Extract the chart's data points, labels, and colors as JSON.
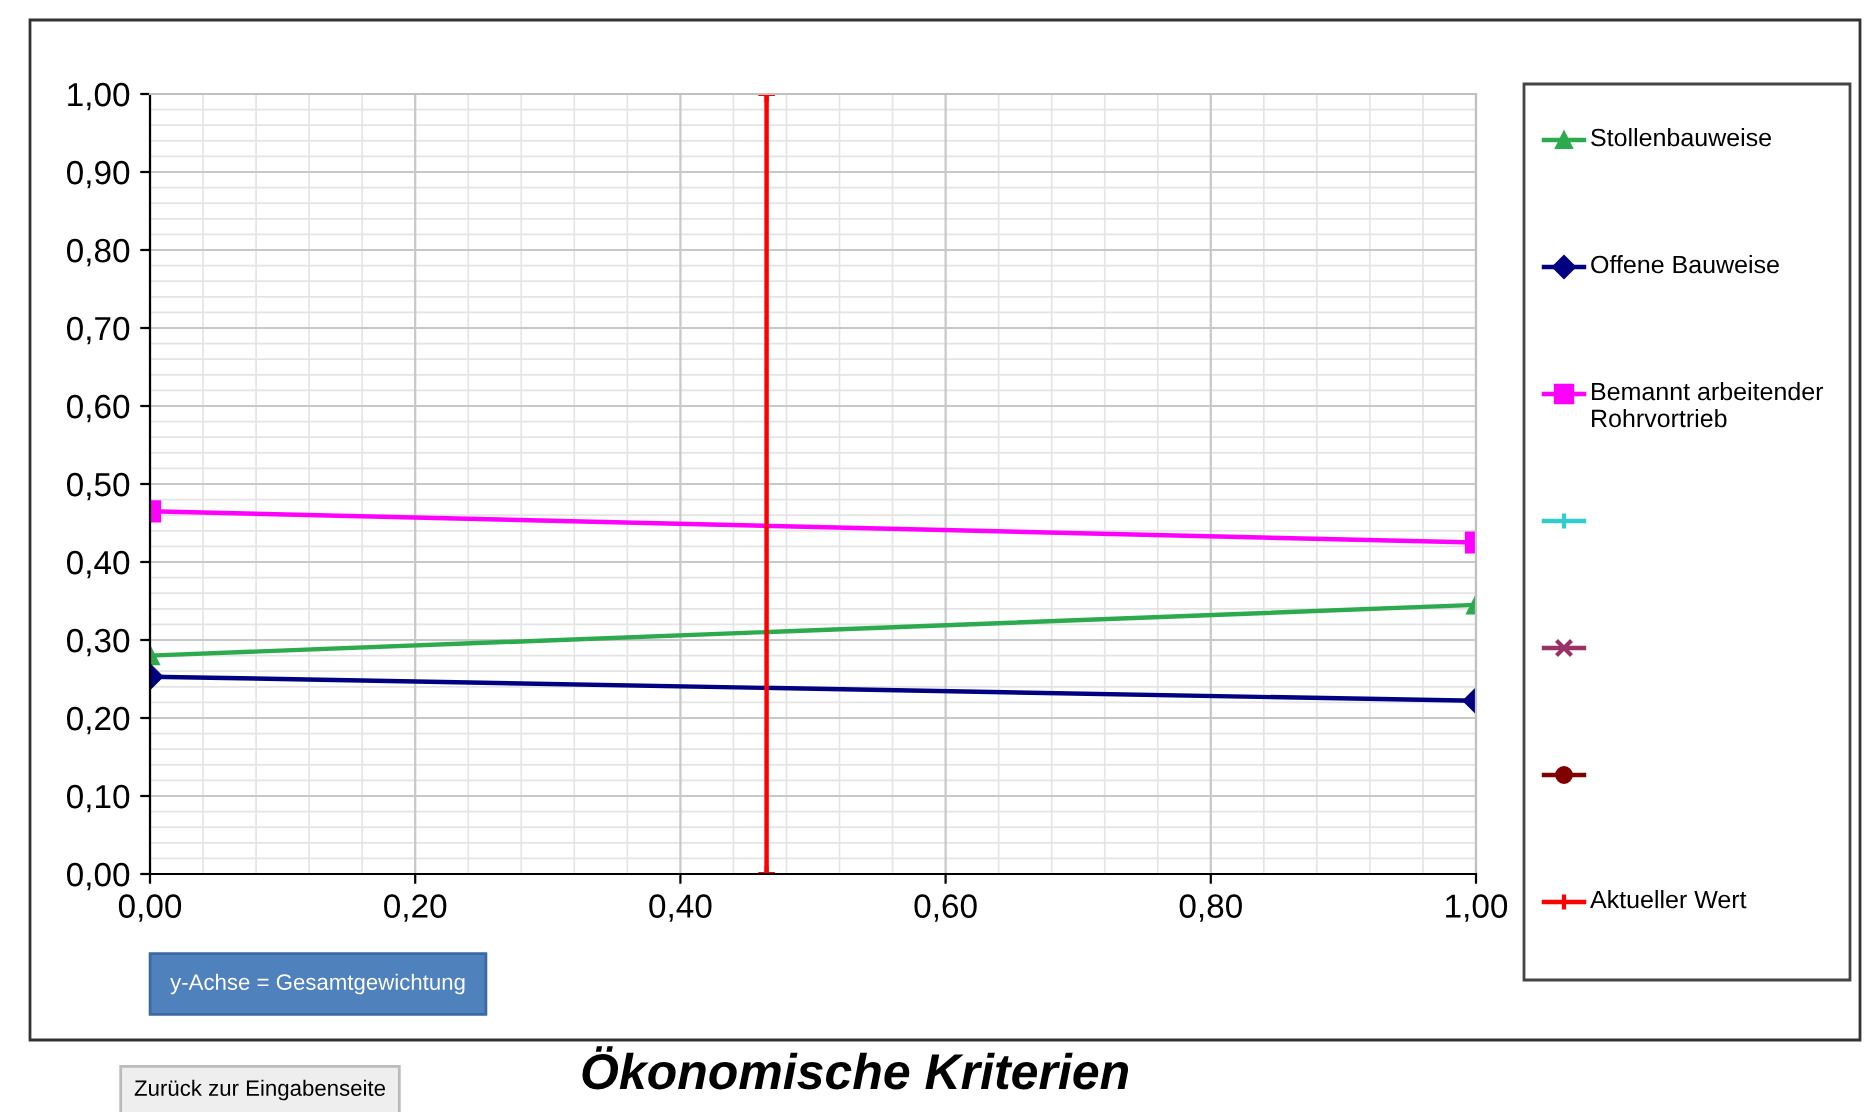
{
  "chart_data": {
    "type": "line",
    "title": "Ökonomische Kriterien",
    "x": [
      0,
      1
    ],
    "series": [
      {
        "name": "Stollenbauweise",
        "color": "#2eaa4e",
        "marker": "triangle",
        "values": [
          0.28,
          0.345
        ]
      },
      {
        "name": "Offene Bauweise",
        "color": "#000080",
        "marker": "diamond",
        "values": [
          0.253,
          0.222
        ]
      },
      {
        "name": "Bemannt arbeitender Rohrvortrieb",
        "color": "#ff00ff",
        "marker": "square",
        "values": [
          0.465,
          0.425
        ]
      },
      {
        "color": "#33cccc",
        "marker": "cross",
        "values": [
          null,
          null
        ]
      },
      {
        "color": "#993366",
        "marker": "star",
        "values": [
          null,
          null
        ]
      },
      {
        "color": "#800000",
        "marker": "circle",
        "values": [
          null,
          null
        ]
      },
      {
        "name": "Aktueller Wert",
        "color": "#ff0000",
        "marker": "cross",
        "x": [
          0.465,
          0.465
        ],
        "values": [
          0,
          1
        ]
      }
    ],
    "xlim": [
      0,
      1
    ],
    "xticks": [
      {
        "value": 0,
        "label": "0,00"
      },
      {
        "value": 0.2,
        "label": "0,20"
      },
      {
        "value": 0.4,
        "label": "0,40"
      },
      {
        "value": 0.6,
        "label": "0,60"
      },
      {
        "value": 0.8,
        "label": "0,80"
      },
      {
        "value": 1,
        "label": "1,00"
      }
    ],
    "ylim": [
      0,
      1
    ],
    "yticks": [
      {
        "value": 0,
        "label": "0,00"
      },
      {
        "value": 0.1,
        "label": "0,10"
      },
      {
        "value": 0.2,
        "label": "0,20"
      },
      {
        "value": 0.3,
        "label": "0,30"
      },
      {
        "value": 0.4,
        "label": "0,40"
      },
      {
        "value": 0.5,
        "label": "0,50"
      },
      {
        "value": 0.6,
        "label": "0,60"
      },
      {
        "value": 0.7,
        "label": "0,70"
      },
      {
        "value": 0.8,
        "label": "0,80"
      },
      {
        "value": 0.9,
        "label": "0,90"
      },
      {
        "value": 1,
        "label": "1,00"
      }
    ],
    "grid": true,
    "legend": "right",
    "line_style": "solid",
    "annotations": [
      "y-Achse = Gesamtgewichtung",
      "Zurück zur Eingabenseite"
    ]
  }
}
